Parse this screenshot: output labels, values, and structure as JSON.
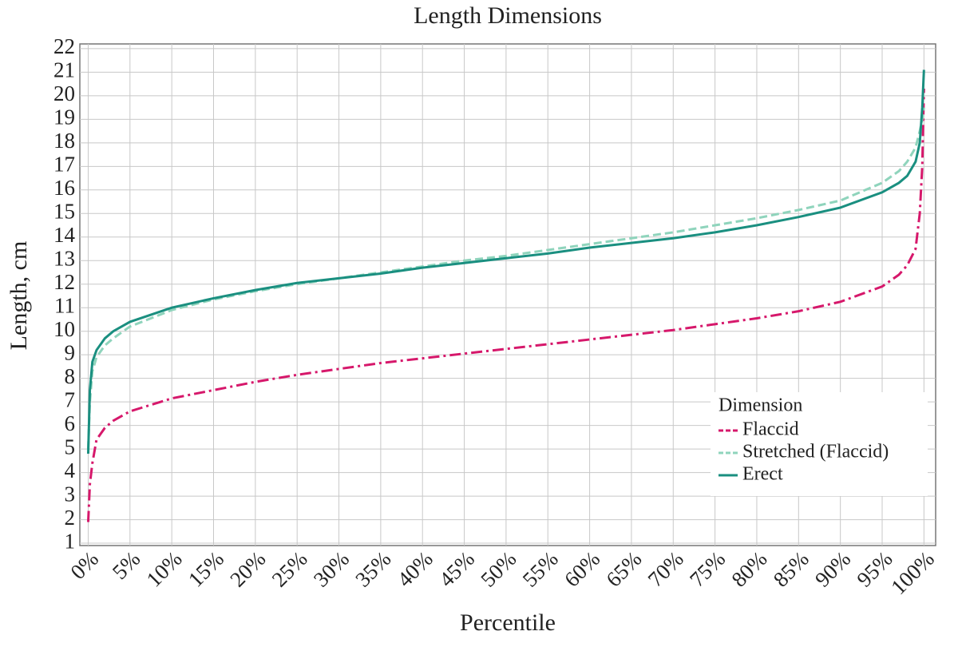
{
  "chart_data": {
    "type": "line",
    "title": "Length Dimensions",
    "x_label": "Percentile",
    "y_label": "Length, cm",
    "x": [
      0,
      0.2,
      0.5,
      1,
      2,
      3,
      5,
      10,
      15,
      20,
      25,
      30,
      35,
      40,
      45,
      50,
      55,
      60,
      65,
      70,
      75,
      80,
      85,
      90,
      95,
      97,
      98,
      99,
      99.5,
      99.8,
      100
    ],
    "series": [
      {
        "name": "Flaccid",
        "color": "#d6186b",
        "dash": "14 5 3 5",
        "values": [
          1.9,
          3.5,
          4.4,
          5.4,
          5.9,
          6.2,
          6.6,
          7.15,
          7.5,
          7.85,
          8.15,
          8.4,
          8.65,
          8.85,
          9.05,
          9.25,
          9.45,
          9.65,
          9.85,
          10.05,
          10.3,
          10.55,
          10.85,
          11.25,
          11.9,
          12.4,
          12.8,
          13.5,
          15.0,
          17.0,
          20.3
        ]
      },
      {
        "name": "Stretched (Flaccid)",
        "color": "#8fd4bc",
        "dash": "10 5",
        "values": [
          5.0,
          7.0,
          8.3,
          8.9,
          9.4,
          9.7,
          10.2,
          10.9,
          11.35,
          11.7,
          12.0,
          12.25,
          12.5,
          12.75,
          13.0,
          13.2,
          13.45,
          13.7,
          13.95,
          14.2,
          14.5,
          14.8,
          15.15,
          15.55,
          16.3,
          16.8,
          17.2,
          17.8,
          18.5,
          19.0,
          19.5
        ]
      },
      {
        "name": "Erect",
        "color": "#1a8f80",
        "dash": "none",
        "values": [
          4.8,
          7.5,
          8.7,
          9.2,
          9.7,
          10.0,
          10.4,
          11.0,
          11.4,
          11.75,
          12.05,
          12.25,
          12.45,
          12.7,
          12.9,
          13.1,
          13.3,
          13.55,
          13.75,
          13.95,
          14.2,
          14.5,
          14.85,
          15.25,
          15.9,
          16.3,
          16.6,
          17.2,
          18.0,
          19.5,
          21.1
        ]
      }
    ],
    "legend_title": "Dimension",
    "legend": "lower right",
    "grid": true,
    "xlim": [
      -1,
      101.4
    ],
    "ylim": [
      0.9,
      22.2
    ],
    "xticks": [
      {
        "value": 0,
        "label": "0%"
      },
      {
        "value": 5,
        "label": "5%"
      },
      {
        "value": 10,
        "label": "10%"
      },
      {
        "value": 15,
        "label": "15%"
      },
      {
        "value": 20,
        "label": "20%"
      },
      {
        "value": 25,
        "label": "25%"
      },
      {
        "value": 30,
        "label": "30%"
      },
      {
        "value": 35,
        "label": "35%"
      },
      {
        "value": 40,
        "label": "40%"
      },
      {
        "value": 45,
        "label": "45%"
      },
      {
        "value": 50,
        "label": "50%"
      },
      {
        "value": 55,
        "label": "55%"
      },
      {
        "value": 60,
        "label": "60%"
      },
      {
        "value": 65,
        "label": "65%"
      },
      {
        "value": 70,
        "label": "70%"
      },
      {
        "value": 75,
        "label": "75%"
      },
      {
        "value": 80,
        "label": "80%"
      },
      {
        "value": 85,
        "label": "85%"
      },
      {
        "value": 90,
        "label": "90%"
      },
      {
        "value": 95,
        "label": "95%"
      },
      {
        "value": 100,
        "label": "100%"
      }
    ],
    "yticks": [
      1,
      2,
      3,
      4,
      5,
      6,
      7,
      8,
      9,
      10,
      11,
      12,
      13,
      14,
      15,
      16,
      17,
      18,
      19,
      20,
      21,
      22
    ]
  }
}
